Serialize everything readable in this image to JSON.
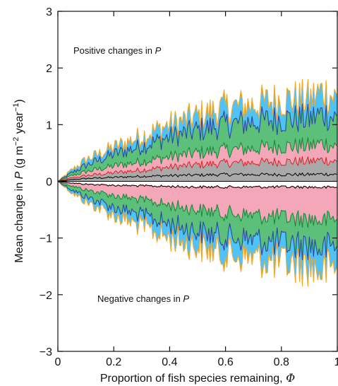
{
  "chart_data": {
    "type": "area",
    "xlabel": "Proportion of fish species remaining, ",
    "xlabel_symbol": "Φ",
    "ylabel_prefix": "Mean change in ",
    "ylabel_var": "P",
    "ylabel_units_open": " (g m",
    "ylabel_exp1": "−2",
    "ylabel_units_mid": " year",
    "ylabel_exp2": "−1",
    "ylabel_units_close": ")",
    "xlim": [
      0,
      1
    ],
    "ylim": [
      -3,
      3
    ],
    "x_ticks": [
      {
        "value": 0,
        "label": "0"
      },
      {
        "value": 0.2,
        "label": "0.2"
      },
      {
        "value": 0.4,
        "label": "0.4"
      },
      {
        "value": 0.6,
        "label": "0.6"
      },
      {
        "value": 0.8,
        "label": "0.8"
      },
      {
        "value": 1,
        "label": "1"
      }
    ],
    "y_ticks": [
      {
        "value": -3,
        "label": "−3"
      },
      {
        "value": -2,
        "label": "−2"
      },
      {
        "value": -1,
        "label": "−1"
      },
      {
        "value": 0,
        "label": "0"
      },
      {
        "value": 1,
        "label": "1"
      },
      {
        "value": 2,
        "label": "2"
      },
      {
        "value": 3,
        "label": "3"
      }
    ],
    "grid": false,
    "annotations": {
      "positive_text": "Positive changes in ",
      "negative_text": "Negative changes in ",
      "var": "P"
    },
    "envelope_colors": {
      "outer_edge": "#f5a623",
      "blue_fill": "#4fc3f7",
      "blue_edge": "#2b4a9c",
      "green_fill": "#5cbf7a",
      "green_edge": "#1a8a3a",
      "pink_fill": "#f4a7b9",
      "pink_edge": "#e02020",
      "grey_fill": "#a9a9a9",
      "median_line": "#000000"
    },
    "envelope_profile": {
      "x": [
        0,
        0.05,
        0.1,
        0.2,
        0.3,
        0.4,
        0.5,
        0.6,
        0.7,
        0.8,
        0.9,
        0.95,
        1.0
      ],
      "positive": {
        "outer": [
          0,
          0.2,
          0.38,
          0.6,
          0.8,
          1.0,
          1.15,
          1.3,
          1.35,
          1.45,
          1.45,
          1.6,
          1.45
        ],
        "blue_inner": [
          0,
          0.15,
          0.28,
          0.48,
          0.62,
          0.78,
          0.9,
          1.0,
          1.05,
          1.1,
          1.1,
          1.2,
          1.1
        ],
        "green_inner": [
          0,
          0.1,
          0.17,
          0.27,
          0.35,
          0.43,
          0.5,
          0.55,
          0.58,
          0.62,
          0.62,
          0.68,
          0.6
        ],
        "pink_inner": [
          0,
          0.06,
          0.1,
          0.15,
          0.2,
          0.25,
          0.29,
          0.32,
          0.33,
          0.35,
          0.35,
          0.38,
          0.34
        ],
        "median": [
          0,
          0.03,
          0.05,
          0.07,
          0.09,
          0.1,
          0.11,
          0.12,
          0.12,
          0.12,
          0.12,
          0.13,
          0.12
        ]
      },
      "negative": {
        "outer": [
          0,
          -0.2,
          -0.36,
          -0.6,
          -0.8,
          -1.0,
          -1.15,
          -1.28,
          -1.35,
          -1.45,
          -1.5,
          -1.6,
          -1.45
        ],
        "blue_inner": [
          0,
          -0.15,
          -0.27,
          -0.46,
          -0.6,
          -0.75,
          -0.88,
          -0.98,
          -1.03,
          -1.1,
          -1.12,
          -1.2,
          -1.1
        ],
        "green_inner": [
          0,
          -0.08,
          -0.15,
          -0.25,
          -0.33,
          -0.42,
          -0.5,
          -0.56,
          -0.6,
          -0.64,
          -0.66,
          -0.7,
          -0.64
        ],
        "pink_inner": [
          0,
          -0.03,
          -0.05,
          -0.07,
          -0.08,
          -0.09,
          -0.1,
          -0.1,
          -0.1,
          -0.1,
          -0.1,
          -0.11,
          -0.1
        ]
      }
    }
  }
}
